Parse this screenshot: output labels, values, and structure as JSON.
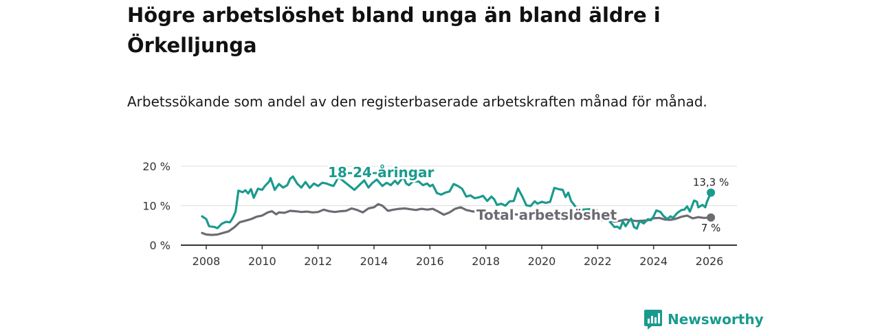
{
  "title": "Högre arbetslöshet bland unga än bland äldre i Örkelljunga",
  "subtitle": "Arbetssökande som andel av den registerbaserade arbetskraften månad för månad.",
  "brand": {
    "name": "Newsworthy",
    "icon": "bar-chart-logo-icon"
  },
  "colors": {
    "youth": "#1a9a8e",
    "total": "#6e6a72",
    "grid": "#dddddd",
    "axis": "#333333"
  },
  "chart_data": {
    "type": "line",
    "title": "Högre arbetslöshet bland unga än bland äldre i Örkelljunga",
    "xlabel": "",
    "ylabel": "",
    "xlim": [
      2008,
      2026.3
    ],
    "ylim": [
      0,
      20
    ],
    "yticks": [
      {
        "value": 0,
        "label": "0 %"
      },
      {
        "value": 10,
        "label": "10 %"
      },
      {
        "value": 20,
        "label": "20 %"
      }
    ],
    "xticks": [
      {
        "value": 2008,
        "label": "2008"
      },
      {
        "value": 2010,
        "label": "2010"
      },
      {
        "value": 2012,
        "label": "2012"
      },
      {
        "value": 2014,
        "label": "2014"
      },
      {
        "value": 2016,
        "label": "2016"
      },
      {
        "value": 2018,
        "label": "2018"
      },
      {
        "value": 2020,
        "label": "2020"
      },
      {
        "value": 2022,
        "label": "2022"
      },
      {
        "value": 2024,
        "label": "2024"
      },
      {
        "value": 2026,
        "label": "2026"
      }
    ],
    "grid": true,
    "series": [
      {
        "name": "18-24-åringar",
        "color": "#1a9a8e",
        "end_label": "13,3 %",
        "points": [
          [
            2007.85,
            7.3
          ],
          [
            2008.0,
            6.6
          ],
          [
            2008.1,
            4.8
          ],
          [
            2008.3,
            4.6
          ],
          [
            2008.4,
            4.3
          ],
          [
            2008.55,
            5.4
          ],
          [
            2008.7,
            5.9
          ],
          [
            2008.85,
            5.8
          ],
          [
            2008.95,
            6.9
          ],
          [
            2009.05,
            8.5
          ],
          [
            2009.15,
            13.8
          ],
          [
            2009.3,
            13.4
          ],
          [
            2009.4,
            13.9
          ],
          [
            2009.5,
            13.1
          ],
          [
            2009.6,
            14.2
          ],
          [
            2009.7,
            12.0
          ],
          [
            2009.85,
            14.3
          ],
          [
            2010.0,
            14.0
          ],
          [
            2010.1,
            15.0
          ],
          [
            2010.25,
            16.1
          ],
          [
            2010.3,
            17.0
          ],
          [
            2010.45,
            14.0
          ],
          [
            2010.6,
            15.5
          ],
          [
            2010.75,
            14.6
          ],
          [
            2010.9,
            15.2
          ],
          [
            2011.0,
            16.8
          ],
          [
            2011.1,
            17.4
          ],
          [
            2011.25,
            15.6
          ],
          [
            2011.4,
            14.6
          ],
          [
            2011.55,
            16.0
          ],
          [
            2011.7,
            14.5
          ],
          [
            2011.85,
            15.6
          ],
          [
            2012.0,
            15.0
          ],
          [
            2012.15,
            15.8
          ],
          [
            2012.3,
            15.6
          ],
          [
            2012.45,
            15.2
          ],
          [
            2012.55,
            15.0
          ],
          [
            2012.65,
            16.2
          ],
          [
            2012.72,
            17.3
          ],
          [
            2013.3,
            14.0
          ],
          [
            2013.65,
            16.4
          ],
          [
            2013.8,
            14.6
          ],
          [
            2013.95,
            15.8
          ],
          [
            2014.1,
            16.6
          ],
          [
            2014.3,
            15.0
          ],
          [
            2014.45,
            15.8
          ],
          [
            2014.6,
            15.2
          ],
          [
            2014.75,
            16.3
          ],
          [
            2014.85,
            15.5
          ],
          [
            2015.05,
            17.3
          ],
          [
            2015.15,
            15.6
          ],
          [
            2015.25,
            15.2
          ],
          [
            2015.4,
            16.2
          ],
          [
            2015.6,
            16.1
          ],
          [
            2015.75,
            15.2
          ],
          [
            2015.9,
            15.6
          ],
          [
            2016.0,
            14.9
          ],
          [
            2016.1,
            15.3
          ],
          [
            2016.25,
            13.2
          ],
          [
            2016.4,
            12.8
          ],
          [
            2016.55,
            13.3
          ],
          [
            2016.7,
            13.6
          ],
          [
            2016.85,
            15.5
          ],
          [
            2017.0,
            15.0
          ],
          [
            2017.15,
            14.3
          ],
          [
            2017.3,
            12.3
          ],
          [
            2017.45,
            12.6
          ],
          [
            2017.6,
            11.9
          ],
          [
            2017.75,
            12.1
          ],
          [
            2017.9,
            12.5
          ],
          [
            2018.05,
            11.2
          ],
          [
            2018.2,
            12.3
          ],
          [
            2018.3,
            11.6
          ],
          [
            2018.4,
            10.2
          ],
          [
            2018.55,
            10.5
          ],
          [
            2018.7,
            10.0
          ],
          [
            2018.85,
            11.1
          ],
          [
            2019.0,
            11.2
          ],
          [
            2019.15,
            14.4
          ],
          [
            2019.3,
            12.4
          ],
          [
            2019.45,
            10.1
          ],
          [
            2019.6,
            9.9
          ],
          [
            2019.75,
            11.1
          ],
          [
            2019.85,
            10.5
          ],
          [
            2020.0,
            11.0
          ],
          [
            2020.15,
            10.7
          ],
          [
            2020.3,
            11.0
          ],
          [
            2020.45,
            14.5
          ],
          [
            2020.6,
            14.2
          ],
          [
            2020.75,
            14.0
          ],
          [
            2020.85,
            12.2
          ],
          [
            2020.95,
            13.3
          ],
          [
            2021.05,
            11.2
          ],
          [
            2021.2,
            9.8
          ],
          [
            2021.25,
            9.2
          ],
          [
            2021.45,
            9.0
          ],
          [
            2021.9,
            9.2
          ],
          [
            2022.0,
            8.6
          ],
          [
            2022.1,
            7.0
          ],
          [
            2022.4,
            6.2
          ],
          [
            2022.5,
            5.4
          ],
          [
            2022.6,
            4.6
          ],
          [
            2022.7,
            4.7
          ],
          [
            2022.8,
            4.2
          ],
          [
            2022.9,
            6.0
          ],
          [
            2023.0,
            4.8
          ],
          [
            2023.1,
            5.9
          ],
          [
            2023.2,
            6.7
          ],
          [
            2023.3,
            4.6
          ],
          [
            2023.4,
            4.2
          ],
          [
            2023.5,
            6.1
          ],
          [
            2023.65,
            5.5
          ],
          [
            2023.8,
            6.6
          ],
          [
            2023.9,
            6.3
          ],
          [
            2024.0,
            7.3
          ],
          [
            2024.1,
            8.8
          ],
          [
            2024.25,
            8.4
          ],
          [
            2024.35,
            7.4
          ],
          [
            2024.5,
            6.6
          ],
          [
            2024.6,
            7.3
          ],
          [
            2024.7,
            6.9
          ],
          [
            2024.85,
            8.2
          ],
          [
            2025.0,
            8.9
          ],
          [
            2025.1,
            9.0
          ],
          [
            2025.2,
            9.8
          ],
          [
            2025.3,
            8.5
          ],
          [
            2025.45,
            11.3
          ],
          [
            2025.55,
            11.0
          ],
          [
            2025.6,
            9.6
          ],
          [
            2025.75,
            10.2
          ],
          [
            2025.85,
            9.6
          ],
          [
            2025.9,
            10.8
          ],
          [
            2026.05,
            13.3
          ]
        ]
      },
      {
        "name": "Total arbetslöshet",
        "color": "#6e6a72",
        "end_label": "7 %",
        "points": [
          [
            2007.85,
            3.1
          ],
          [
            2008.0,
            2.7
          ],
          [
            2008.2,
            2.6
          ],
          [
            2008.4,
            2.7
          ],
          [
            2008.6,
            3.1
          ],
          [
            2008.8,
            3.5
          ],
          [
            2009.0,
            4.5
          ],
          [
            2009.2,
            5.8
          ],
          [
            2009.4,
            6.2
          ],
          [
            2009.6,
            6.6
          ],
          [
            2009.8,
            7.2
          ],
          [
            2010.0,
            7.5
          ],
          [
            2010.2,
            8.3
          ],
          [
            2010.35,
            8.6
          ],
          [
            2010.5,
            7.8
          ],
          [
            2010.6,
            8.3
          ],
          [
            2010.8,
            8.2
          ],
          [
            2011.0,
            8.7
          ],
          [
            2011.2,
            8.6
          ],
          [
            2011.4,
            8.4
          ],
          [
            2011.6,
            8.5
          ],
          [
            2011.8,
            8.3
          ],
          [
            2012.0,
            8.4
          ],
          [
            2012.2,
            9.0
          ],
          [
            2012.4,
            8.6
          ],
          [
            2012.6,
            8.4
          ],
          [
            2012.8,
            8.6
          ],
          [
            2013.0,
            8.7
          ],
          [
            2013.2,
            9.3
          ],
          [
            2013.4,
            8.9
          ],
          [
            2013.6,
            8.3
          ],
          [
            2013.8,
            9.3
          ],
          [
            2014.0,
            9.6
          ],
          [
            2014.15,
            10.4
          ],
          [
            2014.3,
            10.0
          ],
          [
            2014.5,
            8.7
          ],
          [
            2014.7,
            9.0
          ],
          [
            2014.9,
            9.2
          ],
          [
            2015.1,
            9.3
          ],
          [
            2015.3,
            9.1
          ],
          [
            2015.5,
            8.9
          ],
          [
            2015.7,
            9.2
          ],
          [
            2015.9,
            9.0
          ],
          [
            2016.1,
            9.2
          ],
          [
            2016.3,
            8.5
          ],
          [
            2016.5,
            7.7
          ],
          [
            2016.7,
            8.3
          ],
          [
            2016.9,
            9.2
          ],
          [
            2017.1,
            9.6
          ],
          [
            2017.3,
            8.9
          ],
          [
            2017.5,
            8.6
          ],
          [
            2017.6,
            8.5
          ],
          [
            2022.4,
            6.2
          ],
          [
            2022.6,
            6.0
          ],
          [
            2022.8,
            6.2
          ],
          [
            2023.0,
            6.5
          ],
          [
            2023.2,
            6.3
          ],
          [
            2023.4,
            6.1
          ],
          [
            2023.6,
            6.2
          ],
          [
            2023.8,
            6.3
          ],
          [
            2024.0,
            6.8
          ],
          [
            2024.2,
            6.9
          ],
          [
            2024.4,
            6.5
          ],
          [
            2024.6,
            6.4
          ],
          [
            2024.8,
            6.7
          ],
          [
            2025.0,
            7.2
          ],
          [
            2025.2,
            7.5
          ],
          [
            2025.4,
            6.8
          ],
          [
            2025.6,
            7.1
          ],
          [
            2025.8,
            6.9
          ],
          [
            2026.05,
            7.0
          ]
        ]
      }
    ],
    "annotations": [
      {
        "text": "18-24-åringar",
        "series": "18-24-åringar"
      },
      {
        "text": "Total arbetslöshet",
        "series": "Total arbetslöshet"
      }
    ]
  }
}
